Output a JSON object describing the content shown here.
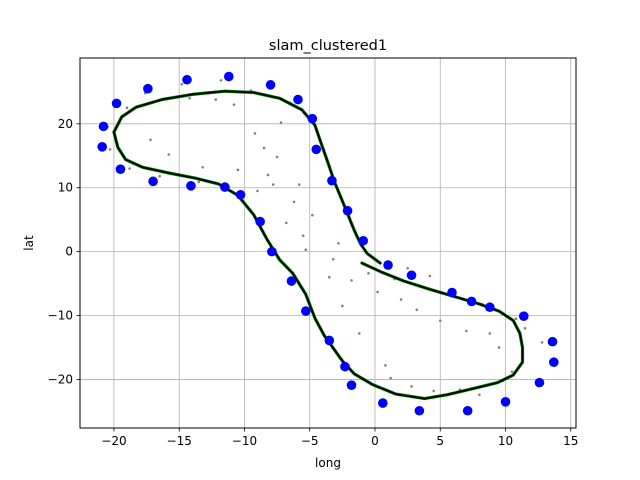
{
  "chart_data": {
    "type": "scatter",
    "title": "slam_clustered1",
    "xlabel": "long",
    "ylabel": "lat",
    "xlim": [
      -22.6,
      15.4
    ],
    "ylim": [
      -27.6,
      30.3
    ],
    "xticks": [
      -20,
      -15,
      -10,
      -5,
      0,
      5,
      10,
      15
    ],
    "yticks": [
      -20,
      -10,
      0,
      10,
      20
    ],
    "grid": true,
    "colors": {
      "landmarks": "#0000ff",
      "observations": "#808080",
      "trajectory": "#000000",
      "trajectory_under": "#008000"
    },
    "series": [
      {
        "type": "scatter",
        "points": [
          [
            -20.8,
            19.6
          ],
          [
            -20.9,
            16.4
          ],
          [
            -19.8,
            23.2
          ],
          [
            -19.5,
            12.9
          ],
          [
            -17.4,
            25.5
          ],
          [
            -17.0,
            11.0
          ],
          [
            -14.4,
            26.9
          ],
          [
            -14.1,
            10.3
          ],
          [
            -11.2,
            27.4
          ],
          [
            -11.5,
            10.1
          ],
          [
            -10.3,
            8.9
          ],
          [
            -8.0,
            26.1
          ],
          [
            -8.8,
            4.7
          ],
          [
            -7.9,
            0.0
          ],
          [
            -5.9,
            23.8
          ],
          [
            -4.8,
            20.8
          ],
          [
            -4.5,
            16.0
          ],
          [
            -6.4,
            -4.6
          ],
          [
            -3.3,
            11.1
          ],
          [
            -2.1,
            6.4
          ],
          [
            -0.9,
            1.7
          ],
          [
            -5.3,
            -9.3
          ],
          [
            -3.5,
            -13.9
          ],
          [
            -2.3,
            -18.0
          ],
          [
            -1.8,
            -20.9
          ],
          [
            1.0,
            -2.1
          ],
          [
            2.8,
            -3.7
          ],
          [
            0.6,
            -23.7
          ],
          [
            3.4,
            -24.9
          ],
          [
            5.9,
            -6.4
          ],
          [
            7.4,
            -7.8
          ],
          [
            8.8,
            -8.7
          ],
          [
            7.1,
            -24.9
          ],
          [
            11.4,
            -10.1
          ],
          [
            10.0,
            -23.5
          ],
          [
            12.6,
            -20.5
          ],
          [
            13.6,
            -14.1
          ],
          [
            13.7,
            -17.3
          ]
        ]
      },
      {
        "type": "scatter",
        "points": [
          [
            -20.5,
            19.5
          ],
          [
            -20.3,
            16.0
          ],
          [
            -19.0,
            22.5
          ],
          [
            -18.8,
            13.0
          ],
          [
            -17.6,
            24.8
          ],
          [
            -17.2,
            17.5
          ],
          [
            -16.5,
            11.8
          ],
          [
            -15.8,
            15.2
          ],
          [
            -14.2,
            24.0
          ],
          [
            -14.8,
            26.2
          ],
          [
            -13.5,
            10.9
          ],
          [
            -13.2,
            13.2
          ],
          [
            -12.2,
            23.8
          ],
          [
            -11.8,
            26.8
          ],
          [
            -10.8,
            23.0
          ],
          [
            -10.5,
            12.8
          ],
          [
            -9.5,
            25.2
          ],
          [
            -9.2,
            18.5
          ],
          [
            -9.0,
            9.5
          ],
          [
            -8.5,
            16.2
          ],
          [
            -8.2,
            12.0
          ],
          [
            -7.8,
            10.5
          ],
          [
            -7.5,
            14.8
          ],
          [
            -7.2,
            20.2
          ],
          [
            -6.8,
            4.5
          ],
          [
            -6.5,
            23.3
          ],
          [
            -6.2,
            7.8
          ],
          [
            -5.8,
            10.5
          ],
          [
            -5.5,
            2.5
          ],
          [
            -5.3,
            0.3
          ],
          [
            -4.8,
            5.7
          ],
          [
            -4.5,
            19.0
          ],
          [
            -3.5,
            -4.0
          ],
          [
            -3.2,
            -1.2
          ],
          [
            -2.8,
            1.3
          ],
          [
            -2.5,
            -8.5
          ],
          [
            -1.8,
            -4.5
          ],
          [
            -1.2,
            -12.8
          ],
          [
            -0.5,
            -3.4
          ],
          [
            0.2,
            -6.3
          ],
          [
            0.8,
            -17.8
          ],
          [
            1.2,
            -19.8
          ],
          [
            1.5,
            -4.3
          ],
          [
            2.0,
            -7.5
          ],
          [
            2.5,
            -2.6
          ],
          [
            2.8,
            -21.1
          ],
          [
            3.2,
            -9.1
          ],
          [
            4.2,
            -3.8
          ],
          [
            4.5,
            -21.8
          ],
          [
            5.0,
            -10.8
          ],
          [
            6.5,
            -21.6
          ],
          [
            7.0,
            -12.4
          ],
          [
            8.0,
            -22.4
          ],
          [
            8.2,
            -8.2
          ],
          [
            8.8,
            -12.8
          ],
          [
            9.5,
            -15.0
          ],
          [
            9.8,
            -20.2
          ],
          [
            10.5,
            -18.8
          ],
          [
            10.8,
            -10.5
          ],
          [
            11.5,
            -12.0
          ],
          [
            12.8,
            -14.2
          ]
        ]
      },
      {
        "type": "line",
        "points": [
          [
            -1.0,
            -1.8
          ],
          [
            0.5,
            -3.2
          ],
          [
            2.2,
            -4.6
          ],
          [
            4.2,
            -5.9
          ],
          [
            6.2,
            -7.1
          ],
          [
            8.0,
            -8.2
          ],
          [
            9.5,
            -9.3
          ],
          [
            10.6,
            -10.8
          ],
          [
            11.1,
            -12.8
          ],
          [
            11.3,
            -15.0
          ],
          [
            11.3,
            -17.3
          ],
          [
            10.6,
            -19.3
          ],
          [
            9.4,
            -20.5
          ],
          [
            7.8,
            -21.3
          ],
          [
            5.5,
            -22.4
          ],
          [
            3.8,
            -23.0
          ],
          [
            1.6,
            -22.3
          ],
          [
            -0.2,
            -20.8
          ],
          [
            -1.6,
            -19.1
          ],
          [
            -2.5,
            -17.1
          ],
          [
            -3.2,
            -15.1
          ],
          [
            -3.9,
            -13.1
          ],
          [
            -4.6,
            -10.4
          ],
          [
            -5.3,
            -6.7
          ],
          [
            -6.3,
            -3.4
          ],
          [
            -7.3,
            -1.3
          ],
          [
            -8.3,
            2.0
          ],
          [
            -9.3,
            5.8
          ],
          [
            -10.5,
            8.8
          ],
          [
            -12.0,
            10.6
          ],
          [
            -13.8,
            11.5
          ],
          [
            -15.8,
            12.3
          ],
          [
            -17.8,
            13.2
          ],
          [
            -19.1,
            14.4
          ],
          [
            -19.7,
            16.3
          ],
          [
            -20.0,
            18.7
          ],
          [
            -19.4,
            21.1
          ],
          [
            -18.3,
            22.6
          ],
          [
            -16.3,
            23.8
          ],
          [
            -14.0,
            24.6
          ],
          [
            -11.5,
            25.1
          ],
          [
            -9.3,
            24.9
          ],
          [
            -7.3,
            24.0
          ],
          [
            -5.6,
            22.2
          ],
          [
            -4.6,
            19.8
          ],
          [
            -4.1,
            16.8
          ],
          [
            -3.6,
            13.9
          ],
          [
            -3.1,
            10.9
          ],
          [
            -2.6,
            8.4
          ],
          [
            -2.1,
            5.9
          ],
          [
            -1.6,
            3.4
          ],
          [
            -1.1,
            1.2
          ],
          [
            -0.6,
            -0.3
          ],
          [
            0.4,
            -1.8
          ]
        ]
      }
    ]
  }
}
